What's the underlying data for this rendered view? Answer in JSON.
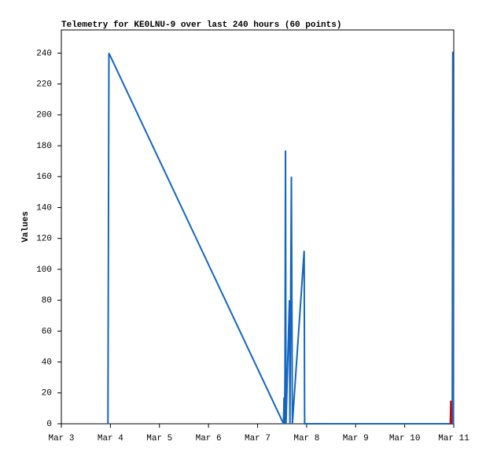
{
  "chart_data": {
    "type": "line",
    "title": "Telemetry for KE0LNU-9 over last 240 hours (60 points)",
    "y_label": "Values",
    "xlim": [
      3,
      11
    ],
    "xticks": [
      {
        "value": 3,
        "label": "Mar 3"
      },
      {
        "value": 4,
        "label": "Mar 4"
      },
      {
        "value": 5,
        "label": "Mar 5"
      },
      {
        "value": 6,
        "label": "Mar 6"
      },
      {
        "value": 7,
        "label": "Mar 7"
      },
      {
        "value": 8,
        "label": "Mar 8"
      },
      {
        "value": 9,
        "label": "Mar 9"
      },
      {
        "value": 10,
        "label": "Mar 10"
      },
      {
        "value": 11,
        "label": "Mar 11"
      }
    ],
    "ylim": [
      0,
      255
    ],
    "yticks": [
      0,
      20,
      40,
      60,
      80,
      100,
      120,
      140,
      160,
      180,
      200,
      220,
      240
    ],
    "series": [
      {
        "color": "#1565c0",
        "x": [
          3.95,
          3.96,
          3.97,
          7.53,
          7.54,
          7.55,
          7.56,
          7.57,
          7.58,
          7.65,
          7.66,
          7.69,
          7.71,
          7.95,
          7.96,
          10.97,
          10.98,
          10.99
        ],
        "values": [
          0,
          121,
          240,
          0,
          17,
          0,
          32,
          177,
          0,
          80,
          0,
          160,
          0,
          112,
          0,
          0,
          241,
          0
        ]
      },
      {
        "color": "#d50000",
        "x": [
          10.93,
          10.94,
          10.95
        ],
        "values": [
          0,
          15,
          0
        ]
      }
    ]
  }
}
